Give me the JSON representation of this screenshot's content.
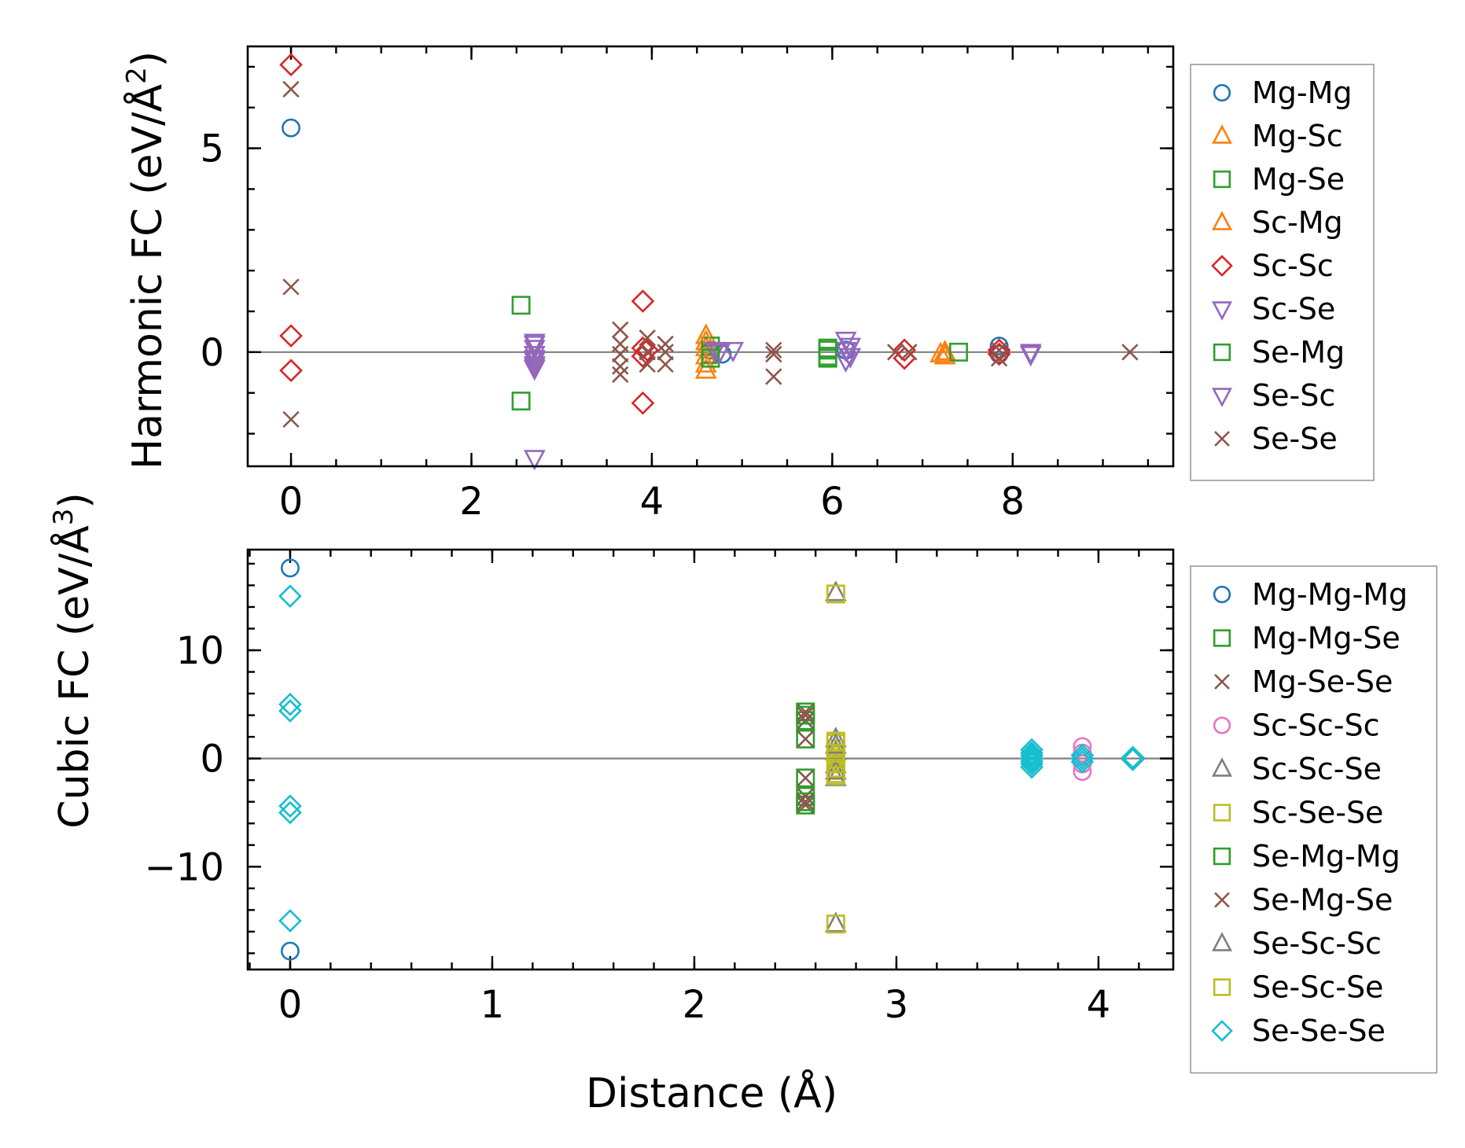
{
  "chart_data": [
    {
      "type": "scatter",
      "id": "harmonic",
      "ylabel": "Harmonic FC (eV/Å²)",
      "ylabel_main": "Harmonic FC (eV/Å",
      "ylabel_sup": "2",
      "ylabel_close": ")",
      "xlabel": "",
      "xlim": [
        -0.48,
        9.78
      ],
      "ylim": [
        -2.8,
        7.5
      ],
      "xticks": [
        0,
        2,
        4,
        6,
        8
      ],
      "xticklabels": [
        "0",
        "2",
        "4",
        "6",
        "8"
      ],
      "yticks": [
        0,
        5
      ],
      "yticklabels": [
        "0",
        "5"
      ],
      "xminor": 0.5,
      "yminor": 1,
      "zero_line": true,
      "series": [
        {
          "name": "Mg-Mg",
          "marker": "circle",
          "color": "#1f77b4",
          "points": [
            [
              0,
              5.5
            ],
            [
              4.65,
              0.05
            ],
            [
              4.78,
              -0.05
            ],
            [
              6.15,
              0.05
            ],
            [
              7.85,
              0.15
            ],
            [
              7.85,
              -0.05
            ]
          ]
        },
        {
          "name": "Mg-Sc",
          "marker": "triangle-up",
          "color": "#ff7f0e",
          "points": [
            [
              4.6,
              0.4
            ],
            [
              4.6,
              0.1
            ],
            [
              4.6,
              -0.1
            ],
            [
              4.6,
              -0.45
            ],
            [
              7.25,
              0.0
            ],
            [
              7.25,
              -0.1
            ]
          ]
        },
        {
          "name": "Mg-Se",
          "marker": "square",
          "color": "#2ca02c",
          "points": [
            [
              2.55,
              1.15
            ],
            [
              2.55,
              -1.2
            ],
            [
              4.65,
              0.15
            ],
            [
              4.65,
              -0.05
            ],
            [
              5.95,
              0.1
            ],
            [
              5.95,
              -0.1
            ],
            [
              7.4,
              0.0
            ]
          ]
        },
        {
          "name": "Sc-Mg",
          "marker": "triangle-up",
          "color": "#ff7f0e",
          "points": [
            [
              4.6,
              0.25
            ],
            [
              4.6,
              -0.3
            ],
            [
              7.2,
              -0.05
            ]
          ]
        },
        {
          "name": "Sc-Sc",
          "marker": "diamond",
          "color": "#d62728",
          "points": [
            [
              0,
              7.05
            ],
            [
              0,
              0.4
            ],
            [
              0,
              -0.45
            ],
            [
              3.9,
              1.25
            ],
            [
              3.9,
              0.1
            ],
            [
              3.9,
              -0.1
            ],
            [
              3.9,
              -1.25
            ],
            [
              3.95,
              0.05
            ],
            [
              6.8,
              0.05
            ],
            [
              6.8,
              -0.15
            ],
            [
              7.85,
              0.05
            ],
            [
              7.85,
              -0.05
            ]
          ]
        },
        {
          "name": "Sc-Se",
          "marker": "triangle-down",
          "color": "#9467bd",
          "points": [
            [
              2.7,
              0.25
            ],
            [
              2.7,
              0.1
            ],
            [
              2.7,
              -0.05
            ],
            [
              2.7,
              -0.15
            ],
            [
              2.7,
              -0.3
            ],
            [
              2.7,
              -0.4
            ],
            [
              2.7,
              -2.6
            ],
            [
              4.7,
              0.05
            ],
            [
              4.9,
              0.05
            ],
            [
              6.15,
              0.3
            ],
            [
              6.15,
              0.05
            ],
            [
              6.15,
              -0.2
            ],
            [
              8.2,
              0.0
            ]
          ]
        },
        {
          "name": "Se-Mg",
          "marker": "square",
          "color": "#2ca02c",
          "points": [
            [
              4.65,
              -0.15
            ],
            [
              5.95,
              0.05
            ],
            [
              5.95,
              -0.15
            ]
          ]
        },
        {
          "name": "Se-Sc",
          "marker": "triangle-down",
          "color": "#9467bd",
          "points": [
            [
              2.7,
              0.2
            ],
            [
              2.7,
              -0.2
            ],
            [
              2.7,
              -0.35
            ],
            [
              4.75,
              0.0
            ],
            [
              6.2,
              0.15
            ],
            [
              6.2,
              -0.1
            ],
            [
              8.2,
              -0.05
            ]
          ]
        },
        {
          "name": "Se-Se",
          "marker": "x",
          "color": "#8c564b",
          "points": [
            [
              0,
              6.45
            ],
            [
              0,
              1.6
            ],
            [
              0,
              -1.65
            ],
            [
              3.65,
              0.55
            ],
            [
              3.65,
              0.2
            ],
            [
              3.65,
              -0.05
            ],
            [
              3.65,
              -0.35
            ],
            [
              3.65,
              -0.55
            ],
            [
              3.95,
              0.35
            ],
            [
              3.95,
              0.0
            ],
            [
              3.95,
              -0.3
            ],
            [
              4.15,
              0.2
            ],
            [
              4.15,
              0.0
            ],
            [
              4.15,
              -0.3
            ],
            [
              5.35,
              0.05
            ],
            [
              5.35,
              -0.05
            ],
            [
              5.35,
              -0.6
            ],
            [
              6.7,
              0.0
            ],
            [
              6.85,
              0.0
            ],
            [
              7.85,
              0.05
            ],
            [
              7.85,
              -0.15
            ],
            [
              9.3,
              0.0
            ]
          ]
        }
      ],
      "legend": {
        "placement": "right",
        "entries": [
          {
            "label": "Mg-Mg",
            "marker": "circle",
            "color": "#1f77b4"
          },
          {
            "label": "Mg-Sc",
            "marker": "triangle-up",
            "color": "#ff7f0e"
          },
          {
            "label": "Mg-Se",
            "marker": "square",
            "color": "#2ca02c"
          },
          {
            "label": "Sc-Mg",
            "marker": "triangle-up",
            "color": "#ff7f0e"
          },
          {
            "label": "Sc-Sc",
            "marker": "diamond",
            "color": "#d62728"
          },
          {
            "label": "Sc-Se",
            "marker": "triangle-down",
            "color": "#9467bd"
          },
          {
            "label": "Se-Mg",
            "marker": "square",
            "color": "#2ca02c"
          },
          {
            "label": "Se-Sc",
            "marker": "triangle-down",
            "color": "#9467bd"
          },
          {
            "label": "Se-Se",
            "marker": "x",
            "color": "#8c564b"
          }
        ]
      }
    },
    {
      "type": "scatter",
      "id": "cubic",
      "ylabel": "Cubic FC (eV/Å³)",
      "ylabel_main": "Cubic FC (eV/Å",
      "ylabel_sup": "3",
      "ylabel_close": ")",
      "xlabel": "Distance (Å)",
      "xlim": [
        -0.21,
        4.37
      ],
      "ylim": [
        -19.5,
        19.3
      ],
      "xticks": [
        0,
        1,
        2,
        3,
        4
      ],
      "xticklabels": [
        "0",
        "1",
        "2",
        "3",
        "4"
      ],
      "yticks": [
        -10,
        0,
        10
      ],
      "yticklabels": [
        "−10",
        "0",
        "10"
      ],
      "xminor": 0.2,
      "yminor": 2,
      "zero_line": true,
      "series": [
        {
          "name": "Mg-Mg-Mg",
          "marker": "circle",
          "color": "#1f77b4",
          "points": [
            [
              0,
              17.6
            ],
            [
              0,
              -17.8
            ]
          ]
        },
        {
          "name": "Mg-Mg-Se",
          "marker": "square",
          "color": "#2ca02c",
          "points": [
            [
              2.55,
              4.3
            ],
            [
              2.55,
              3.5
            ],
            [
              2.55,
              1.8
            ],
            [
              2.55,
              -1.8
            ],
            [
              2.55,
              -3.5
            ],
            [
              2.55,
              -4.3
            ]
          ]
        },
        {
          "name": "Mg-Se-Se",
          "marker": "x",
          "color": "#8c564b",
          "points": [
            [
              2.55,
              4.3
            ],
            [
              2.55,
              3.5
            ],
            [
              2.55,
              1.8
            ],
            [
              2.55,
              -1.8
            ],
            [
              2.55,
              -3.5
            ],
            [
              2.55,
              -4.3
            ]
          ]
        },
        {
          "name": "Sc-Sc-Sc",
          "marker": "circle",
          "color": "#e377c2",
          "points": [
            [
              3.92,
              1.1
            ],
            [
              3.92,
              0.5
            ],
            [
              3.92,
              -0.5
            ],
            [
              3.92,
              -1.2
            ]
          ]
        },
        {
          "name": "Sc-Sc-Se",
          "marker": "triangle-up",
          "color": "#7f7f7f",
          "points": [
            [
              2.7,
              15.3
            ],
            [
              2.7,
              1.8
            ],
            [
              2.7,
              0.6
            ],
            [
              2.7,
              -0.6
            ],
            [
              2.7,
              -1.8
            ],
            [
              2.7,
              -15.3
            ]
          ]
        },
        {
          "name": "Sc-Se-Se",
          "marker": "square",
          "color": "#bcbd22",
          "points": [
            [
              2.7,
              15.2
            ],
            [
              2.7,
              1.4
            ],
            [
              2.7,
              0.9
            ],
            [
              2.7,
              0.3
            ],
            [
              2.7,
              -0.3
            ],
            [
              2.7,
              -0.9
            ],
            [
              2.7,
              -1.4
            ],
            [
              2.7,
              -15.3
            ]
          ]
        },
        {
          "name": "Se-Mg-Mg",
          "marker": "square",
          "color": "#2ca02c",
          "points": [
            [
              2.55,
              4.0
            ],
            [
              2.55,
              -4.0
            ]
          ]
        },
        {
          "name": "Se-Mg-Se",
          "marker": "x",
          "color": "#8c564b",
          "points": [
            [
              2.55,
              4.0
            ],
            [
              2.55,
              -4.0
            ]
          ]
        },
        {
          "name": "Se-Sc-Sc",
          "marker": "triangle-up",
          "color": "#7f7f7f",
          "points": [
            [
              2.7,
              1.2
            ],
            [
              2.7,
              -1.2
            ]
          ]
        },
        {
          "name": "Se-Sc-Se",
          "marker": "square",
          "color": "#bcbd22",
          "points": [
            [
              2.7,
              1.6
            ],
            [
              2.7,
              0.5
            ],
            [
              2.7,
              -0.5
            ],
            [
              2.7,
              -1.6
            ]
          ]
        },
        {
          "name": "Se-Se-Se",
          "marker": "diamond",
          "color": "#17becf",
          "points": [
            [
              0,
              15.0
            ],
            [
              0,
              5.0
            ],
            [
              0,
              4.4
            ],
            [
              0,
              -4.4
            ],
            [
              0,
              -5.0
            ],
            [
              0,
              -15.0
            ],
            [
              3.67,
              0.8
            ],
            [
              3.67,
              0.5
            ],
            [
              3.67,
              0.25
            ],
            [
              3.67,
              0.0
            ],
            [
              3.67,
              -0.25
            ],
            [
              3.67,
              -0.5
            ],
            [
              3.67,
              -0.8
            ],
            [
              3.92,
              0.3
            ],
            [
              3.92,
              0.0
            ],
            [
              3.92,
              -0.3
            ],
            [
              4.17,
              0.1
            ],
            [
              4.17,
              -0.1
            ]
          ]
        }
      ],
      "legend": {
        "placement": "right",
        "entries": [
          {
            "label": "Mg-Mg-Mg",
            "marker": "circle",
            "color": "#1f77b4"
          },
          {
            "label": "Mg-Mg-Se",
            "marker": "square",
            "color": "#2ca02c"
          },
          {
            "label": "Mg-Se-Se",
            "marker": "x",
            "color": "#8c564b"
          },
          {
            "label": "Sc-Sc-Sc",
            "marker": "circle",
            "color": "#e377c2"
          },
          {
            "label": "Sc-Sc-Se",
            "marker": "triangle-up",
            "color": "#7f7f7f"
          },
          {
            "label": "Sc-Se-Se",
            "marker": "square",
            "color": "#bcbd22"
          },
          {
            "label": "Se-Mg-Mg",
            "marker": "square",
            "color": "#2ca02c"
          },
          {
            "label": "Se-Mg-Se",
            "marker": "x",
            "color": "#8c564b"
          },
          {
            "label": "Se-Sc-Sc",
            "marker": "triangle-up",
            "color": "#7f7f7f"
          },
          {
            "label": "Se-Sc-Se",
            "marker": "square",
            "color": "#bcbd22"
          },
          {
            "label": "Se-Se-Se",
            "marker": "diamond",
            "color": "#17becf"
          }
        ]
      }
    }
  ]
}
